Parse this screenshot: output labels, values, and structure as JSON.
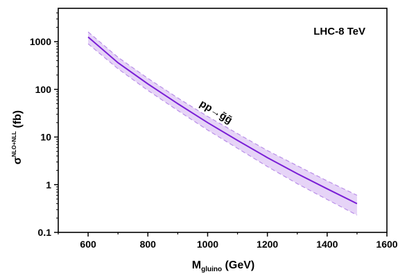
{
  "chart_data": {
    "type": "line",
    "title": "",
    "xlabel": {
      "main": "M",
      "sub": "gluino",
      "unit": " (GeV)"
    },
    "ylabel": {
      "main": "σ",
      "sup": "NLO+NLL",
      "unit": " (fb)"
    },
    "xlim": [
      500,
      1600
    ],
    "ylim": [
      0.1,
      5000
    ],
    "yscale": "log",
    "grid": false,
    "x_ticks": [
      600,
      800,
      1000,
      1200,
      1400,
      1600
    ],
    "x_tick_labels": [
      "600",
      "800",
      "1000",
      "1200",
      "1400",
      "1600"
    ],
    "y_ticks": [
      0.1,
      1,
      10,
      100,
      1000
    ],
    "y_tick_labels": [
      "0.1",
      "1",
      "10",
      "100",
      "1000"
    ],
    "annotations": {
      "energy": "LHC-8 TeV",
      "process": "pp→g̃g̃"
    },
    "colors": {
      "line": "#7a1fd6",
      "band_fill": "#e6d4f7",
      "band_edge": "#b98ee8",
      "axis": "#000000"
    },
    "series": [
      {
        "x": [
          600,
          700,
          800,
          900,
          1000,
          1100,
          1200,
          1300,
          1400,
          1500
        ],
        "y": [
          1250,
          360,
          130,
          50,
          20,
          8.5,
          3.7,
          1.7,
          0.82,
          0.4
        ],
        "y_low": [
          900,
          270,
          95,
          36,
          14,
          5.8,
          2.4,
          1.05,
          0.49,
          0.23
        ],
        "y_high": [
          1600,
          470,
          170,
          66,
          27,
          11.8,
          5.2,
          2.5,
          1.2,
          0.6
        ]
      }
    ]
  }
}
